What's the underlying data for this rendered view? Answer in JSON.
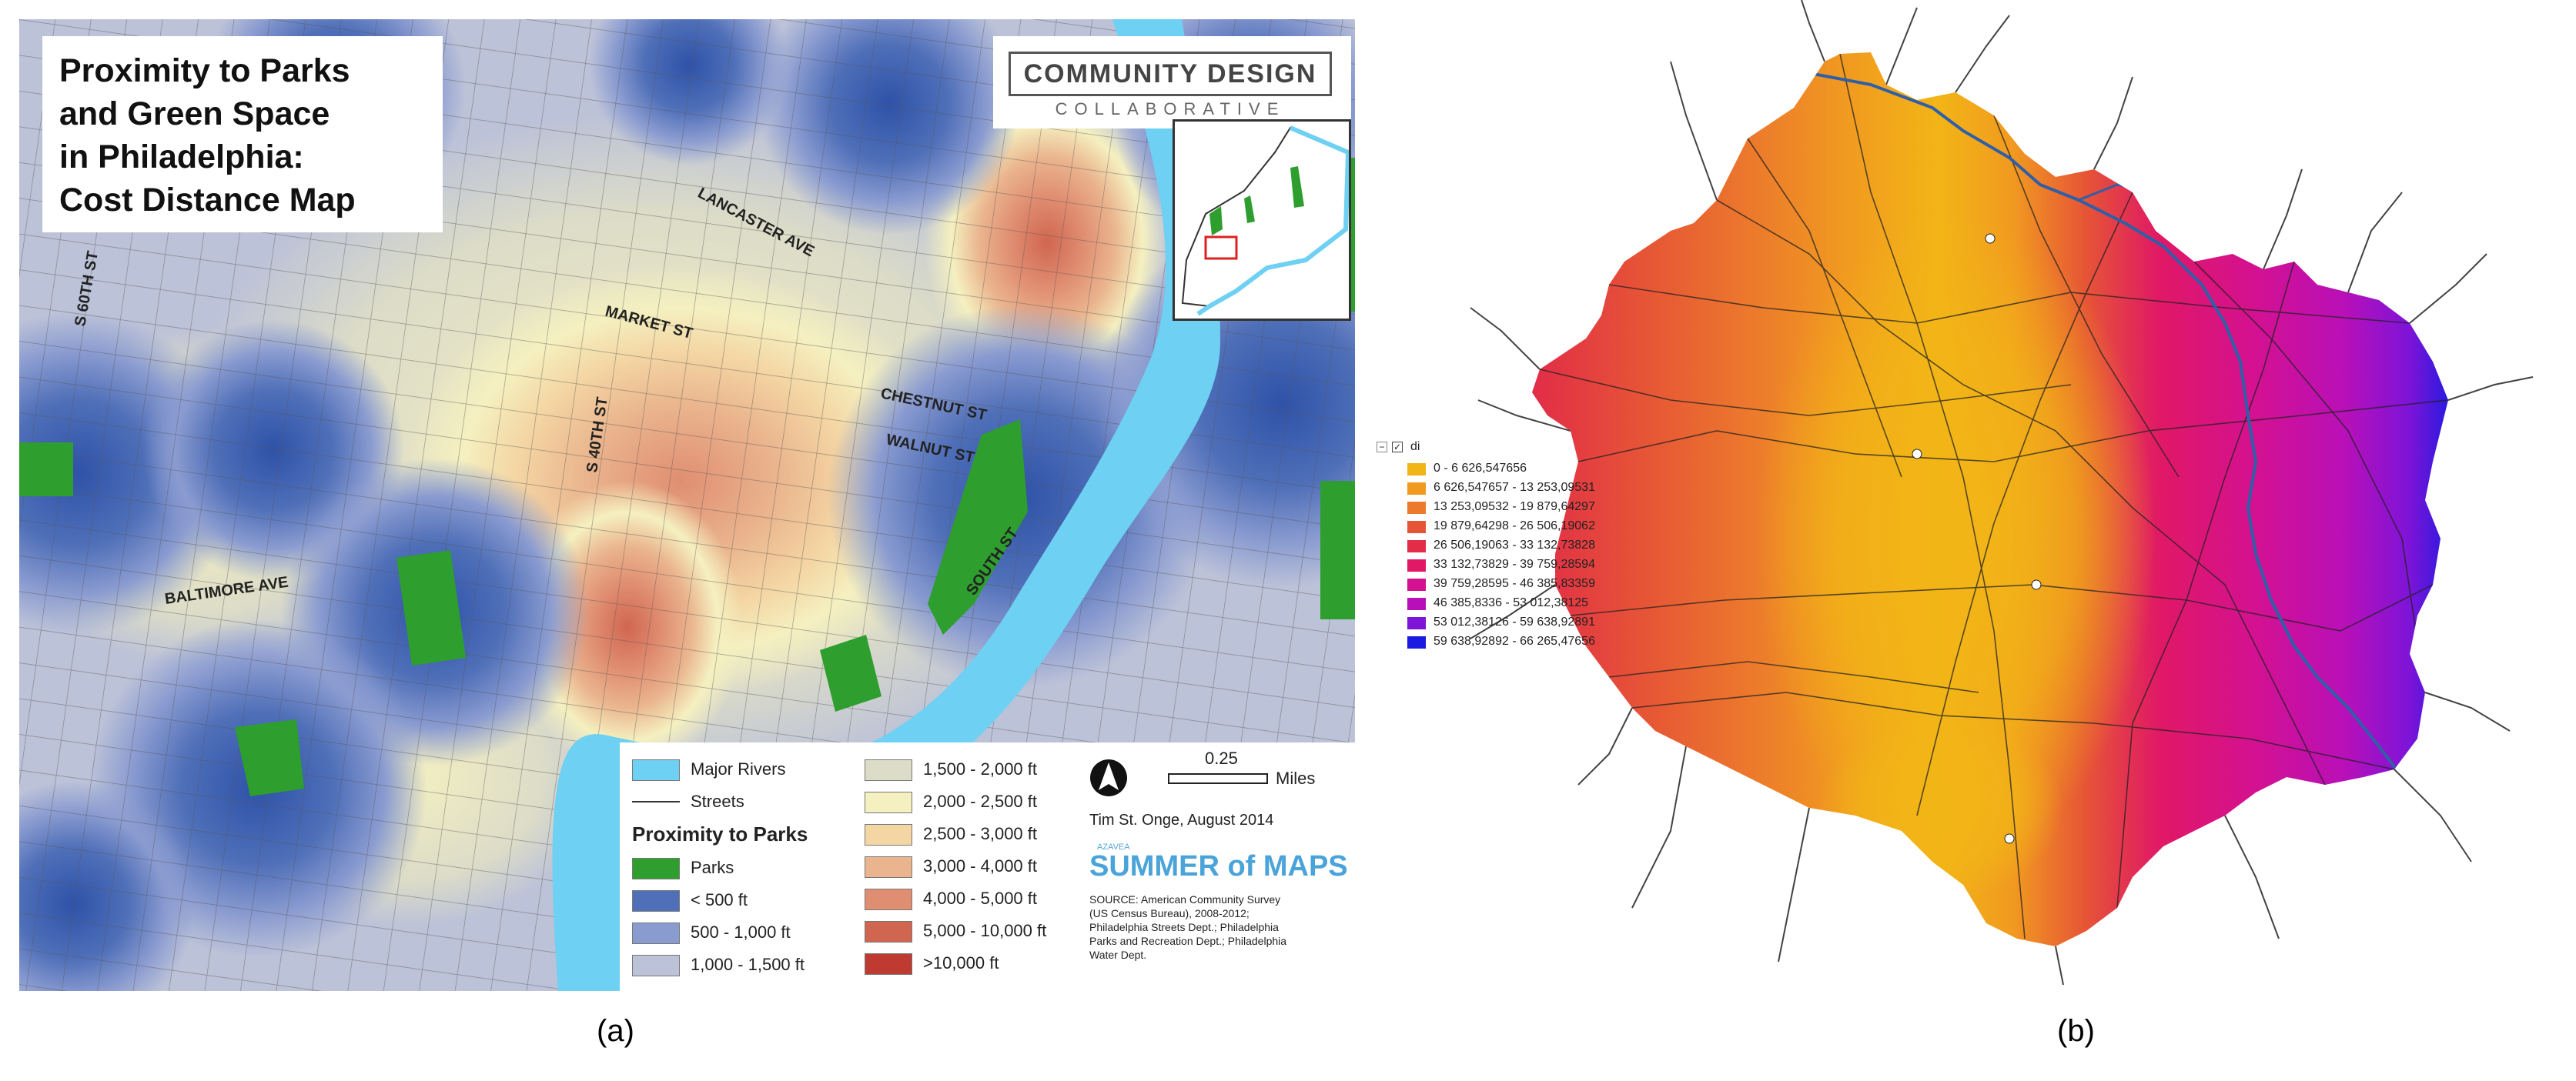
{
  "figure_a": {
    "title_lines": [
      "Proximity to Parks",
      "and Green Space",
      "in Philadelphia:",
      "Cost Distance Map"
    ],
    "logo": {
      "name": "COMMUNITY DESIGN",
      "sub": "COLLABORATIVE"
    },
    "streets": [
      "LANCASTER AVE",
      "S 60TH ST",
      "MARKET ST",
      "CHESTNUT ST",
      "WALNUT ST",
      "S 40TH ST",
      "BALTIMORE AVE",
      "SOUTH ST"
    ],
    "legend": {
      "major_rivers": "Major Rivers",
      "streets": "Streets",
      "heading": "Proximity to Parks",
      "left_items": [
        {
          "label": "Parks",
          "color": "#2e9e2e"
        },
        {
          "label": "< 500 ft",
          "color": "#4f6fb8"
        },
        {
          "label": "500 - 1,000 ft",
          "color": "#8a9bd0"
        },
        {
          "label": "1,000 - 1,500 ft",
          "color": "#bcc2d8"
        }
      ],
      "right_items": [
        {
          "label": "1,500 - 2,000 ft",
          "color": "#dcdcc8"
        },
        {
          "label": "2,000 - 2,500 ft",
          "color": "#f5f0c0"
        },
        {
          "label": "2,500 - 3,000 ft",
          "color": "#f4d6a4"
        },
        {
          "label": "3,000 - 4,000 ft",
          "color": "#eab58e"
        },
        {
          "label": "4,000 - 5,000 ft",
          "color": "#e08e72"
        },
        {
          "label": "5,000 - 10,000 ft",
          "color": "#d06650"
        },
        {
          "label": ">10,000 ft",
          "color": "#bf3a30"
        }
      ],
      "scale_value": "0.25",
      "scale_unit": "Miles",
      "author": "Tim St. Onge, August 2014",
      "summer_small": "AZAVEA",
      "summer_of_maps": "SUMMER of MAPS",
      "source_lines": [
        "SOURCE: American Community Survey",
        "(US Census Bureau), 2008-2012;",
        "Philadelphia Streets Dept.; Philadelphia",
        "Parks and Recreation Dept.; Philadelphia",
        "Water Dept."
      ]
    },
    "caption": "(a)"
  },
  "figure_b": {
    "layer_name": "di",
    "legend_items": [
      {
        "label": "0 - 6 626,547656",
        "color": "#f2b516"
      },
      {
        "label": "6 626,547657 - 13 253,09531",
        "color": "#f19a20"
      },
      {
        "label": "13 253,09532 - 19 879,64297",
        "color": "#ec7a2c"
      },
      {
        "label": "19 879,64298 - 26 506,19062",
        "color": "#e65436"
      },
      {
        "label": "26 506,19063 - 33 132,73828",
        "color": "#e22c48"
      },
      {
        "label": "33 132,73829 - 39 759,28594",
        "color": "#e01866"
      },
      {
        "label": "39 759,28595 - 46 385,83359",
        "color": "#d41190"
      },
      {
        "label": "46 385,8336 - 53 012,38125",
        "color": "#b810b8"
      },
      {
        "label": "53 012,38126 - 59 638,92891",
        "color": "#7d14d8"
      },
      {
        "label": "59 638,92892 - 66 265,47656",
        "color": "#1a1ae0"
      }
    ],
    "caption": "(b)"
  }
}
